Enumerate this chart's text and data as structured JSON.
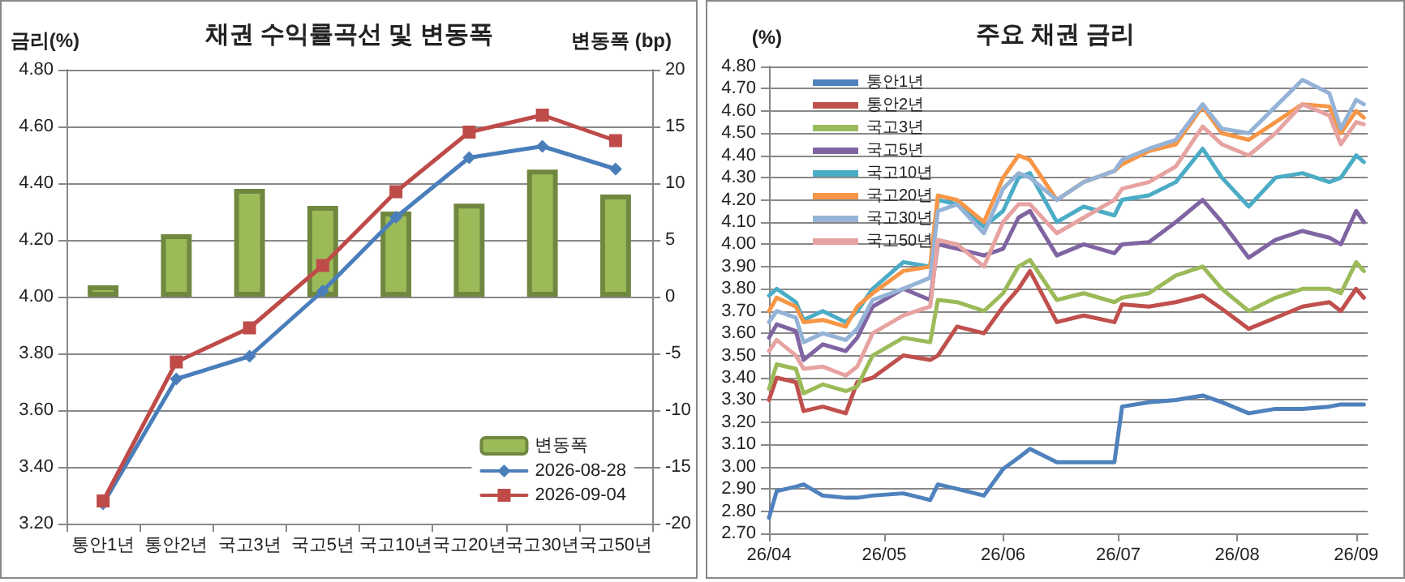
{
  "chart_data": [
    {
      "type": "bar",
      "title": "채권 수익률곡선 및 변동폭",
      "ylabel": "금리(%)",
      "y2label": "변동폭 (bp)",
      "categories": [
        "통안1년",
        "통안2년",
        "국고3년",
        "국고5년",
        "국고10년",
        "국고20년",
        "국고30년",
        "국고50년"
      ],
      "series": [
        {
          "name": "변동폭",
          "type": "bar",
          "axis": "y2",
          "color": "#9bbb59",
          "values": [
            1,
            5.5,
            9.5,
            8,
            7.5,
            8.2,
            11.2,
            9
          ]
        },
        {
          "name": "2026-08-28",
          "type": "line",
          "marker": "diamond",
          "color": "#4a7ebb",
          "values": [
            3.27,
            3.71,
            3.79,
            4.02,
            4.28,
            4.49,
            4.53,
            4.45
          ]
        },
        {
          "name": "2026-09-04",
          "type": "line",
          "marker": "square",
          "color": "#be4b48",
          "values": [
            3.28,
            3.77,
            3.89,
            4.11,
            4.37,
            4.58,
            4.64,
            4.55
          ]
        }
      ],
      "ylim": [
        3.2,
        4.8
      ],
      "yticks": [
        {
          "value": 3.2,
          "label": "3.20"
        },
        {
          "value": 3.4,
          "label": "3.40"
        },
        {
          "value": 3.6,
          "label": "3.60"
        },
        {
          "value": 3.8,
          "label": "3.80"
        },
        {
          "value": 4.0,
          "label": "4.00"
        },
        {
          "value": 4.2,
          "label": "4.20"
        },
        {
          "value": 4.4,
          "label": "4.40"
        },
        {
          "value": 4.6,
          "label": "4.60"
        },
        {
          "value": 4.8,
          "label": "4.80"
        }
      ],
      "y2lim": [
        -20,
        20
      ],
      "y2ticks": [
        -20,
        -15,
        -10,
        -5,
        0,
        5,
        10,
        15,
        20
      ],
      "grid": "y",
      "legend": "bottom right"
    },
    {
      "type": "line",
      "title": "주요 채권 금리",
      "ylabel": "(%)",
      "x": [
        "2026-04-01",
        "2026-04-03",
        "2026-04-08",
        "2026-04-10",
        "2026-04-15",
        "2026-04-21",
        "2026-04-24",
        "2026-04-28",
        "2026-05-06",
        "2026-05-13",
        "2026-05-15",
        "2026-05-20",
        "2026-05-27",
        "2026-06-01",
        "2026-06-05",
        "2026-06-08",
        "2026-06-15",
        "2026-06-22",
        "2026-06-30",
        "2026-07-02",
        "2026-07-09",
        "2026-07-16",
        "2026-07-23",
        "2026-07-28",
        "2026-08-04",
        "2026-08-11",
        "2026-08-18",
        "2026-08-25",
        "2026-08-28",
        "2026-09-01",
        "2026-09-03"
      ],
      "series": [
        {
          "name": "통안1년",
          "color": "#4f81bd",
          "values": [
            2.77,
            2.89,
            2.91,
            2.92,
            2.87,
            2.86,
            2.86,
            2.87,
            2.88,
            2.85,
            2.92,
            2.9,
            2.87,
            2.99,
            3.04,
            3.08,
            3.02,
            3.02,
            3.02,
            3.27,
            3.29,
            3.3,
            3.32,
            3.29,
            3.24,
            3.26,
            3.26,
            3.27,
            3.28,
            3.28,
            3.28
          ]
        },
        {
          "name": "통안2년",
          "color": "#c0504d",
          "values": [
            3.3,
            3.4,
            3.38,
            3.25,
            3.27,
            3.24,
            3.38,
            3.4,
            3.5,
            3.48,
            3.5,
            3.63,
            3.6,
            3.72,
            3.8,
            3.88,
            3.65,
            3.68,
            3.65,
            3.73,
            3.72,
            3.74,
            3.77,
            3.71,
            3.62,
            3.67,
            3.72,
            3.74,
            3.7,
            3.8,
            3.76
          ]
        },
        {
          "name": "국고3년",
          "color": "#9bbb59",
          "values": [
            3.35,
            3.46,
            3.44,
            3.33,
            3.37,
            3.34,
            3.36,
            3.5,
            3.58,
            3.56,
            3.75,
            3.74,
            3.7,
            3.78,
            3.9,
            3.93,
            3.75,
            3.78,
            3.74,
            3.76,
            3.78,
            3.86,
            3.9,
            3.8,
            3.7,
            3.76,
            3.8,
            3.8,
            3.78,
            3.92,
            3.88
          ]
        },
        {
          "name": "국고5년",
          "color": "#8064a2",
          "values": [
            3.58,
            3.64,
            3.61,
            3.48,
            3.55,
            3.52,
            3.58,
            3.72,
            3.8,
            3.75,
            4.0,
            3.98,
            3.95,
            3.98,
            4.12,
            4.15,
            3.95,
            4.0,
            3.96,
            4.0,
            4.01,
            4.1,
            4.2,
            4.1,
            3.94,
            4.02,
            4.06,
            4.03,
            4.0,
            4.15,
            4.1
          ]
        },
        {
          "name": "국고10년",
          "color": "#4bacc6",
          "values": [
            3.77,
            3.8,
            3.74,
            3.66,
            3.7,
            3.65,
            3.7,
            3.8,
            3.92,
            3.9,
            4.2,
            4.18,
            4.08,
            4.15,
            4.3,
            4.32,
            4.1,
            4.17,
            4.13,
            4.2,
            4.22,
            4.28,
            4.43,
            4.3,
            4.17,
            4.3,
            4.32,
            4.28,
            4.3,
            4.4,
            4.37
          ]
        },
        {
          "name": "국고20년",
          "color": "#f79646",
          "values": [
            3.7,
            3.76,
            3.72,
            3.65,
            3.66,
            3.63,
            3.72,
            3.78,
            3.88,
            3.9,
            4.22,
            4.2,
            4.1,
            4.3,
            4.4,
            4.38,
            4.2,
            4.28,
            4.33,
            4.36,
            4.42,
            4.45,
            4.62,
            4.5,
            4.47,
            4.55,
            4.63,
            4.62,
            4.5,
            4.6,
            4.57
          ]
        },
        {
          "name": "국고30년",
          "color": "#95b3d7",
          "values": [
            3.65,
            3.7,
            3.67,
            3.56,
            3.6,
            3.57,
            3.62,
            3.75,
            3.8,
            3.85,
            4.15,
            4.18,
            4.05,
            4.25,
            4.32,
            4.3,
            4.2,
            4.28,
            4.33,
            4.38,
            4.43,
            4.47,
            4.63,
            4.52,
            4.5,
            4.62,
            4.74,
            4.68,
            4.52,
            4.65,
            4.63
          ]
        },
        {
          "name": "국고50년",
          "color": "#e6a3a1",
          "values": [
            3.52,
            3.57,
            3.5,
            3.44,
            3.45,
            3.41,
            3.45,
            3.6,
            3.68,
            3.72,
            4.02,
            4.0,
            3.9,
            4.1,
            4.18,
            4.18,
            4.05,
            4.12,
            4.2,
            4.25,
            4.28,
            4.35,
            4.53,
            4.45,
            4.4,
            4.5,
            4.63,
            4.58,
            4.45,
            4.55,
            4.54
          ]
        }
      ],
      "xlim": [
        "2026-04-01",
        "2026-09-04"
      ],
      "xticks": [
        {
          "value": "2026-04-01",
          "label": "26/04"
        },
        {
          "value": "2026-05-01",
          "label": "26/05"
        },
        {
          "value": "2026-06-01",
          "label": "26/06"
        },
        {
          "value": "2026-07-01",
          "label": "26/07"
        },
        {
          "value": "2026-08-01",
          "label": "26/08"
        },
        {
          "value": "2026-09-01",
          "label": "26/09"
        }
      ],
      "ylim": [
        2.7,
        4.8
      ],
      "yticks": [
        {
          "value": 2.7,
          "label": "2.70"
        },
        {
          "value": 2.8,
          "label": "2.80"
        },
        {
          "value": 2.9,
          "label": "2.90"
        },
        {
          "value": 3.0,
          "label": "3.00"
        },
        {
          "value": 3.1,
          "label": "3.10"
        },
        {
          "value": 3.2,
          "label": "3.20"
        },
        {
          "value": 3.3,
          "label": "3.30"
        },
        {
          "value": 3.4,
          "label": "3.40"
        },
        {
          "value": 3.5,
          "label": "3.50"
        },
        {
          "value": 3.6,
          "label": "3.60"
        },
        {
          "value": 3.7,
          "label": "3.70"
        },
        {
          "value": 3.8,
          "label": "3.80"
        },
        {
          "value": 3.9,
          "label": "3.90"
        },
        {
          "value": 4.0,
          "label": "4.00"
        },
        {
          "value": 4.1,
          "label": "4.10"
        },
        {
          "value": 4.2,
          "label": "4.20"
        },
        {
          "value": 4.3,
          "label": "4.30"
        },
        {
          "value": 4.4,
          "label": "4.40"
        },
        {
          "value": 4.5,
          "label": "4.50"
        },
        {
          "value": 4.6,
          "label": "4.60"
        },
        {
          "value": 4.7,
          "label": "4.70"
        },
        {
          "value": 4.8,
          "label": "4.80"
        }
      ],
      "grid": "y",
      "legend": "top left",
      "marker": "none"
    }
  ]
}
